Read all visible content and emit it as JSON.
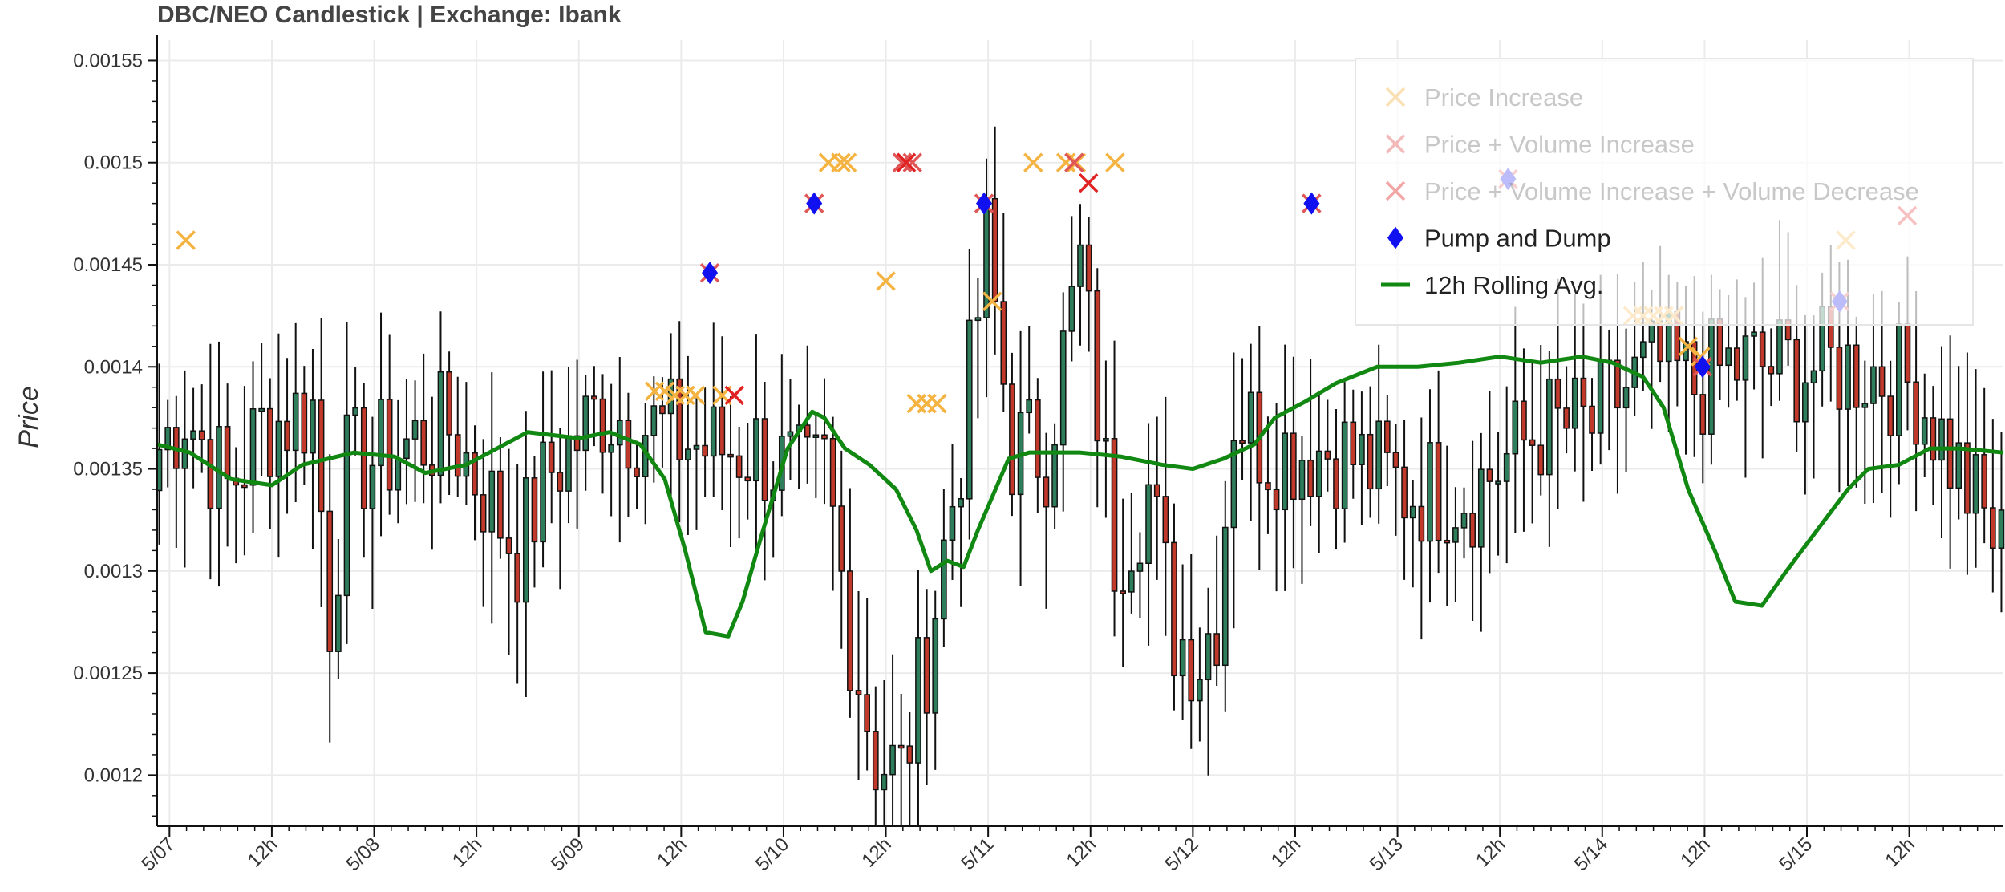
{
  "chart_data": {
    "type": "candlestick",
    "title": "DBC/NEO Candlestick | Exchange: Ibank",
    "xlabel": "",
    "ylabel": "Price",
    "ylim": [
      0.001175,
      0.00156
    ],
    "grid": true,
    "legend_position": "top-right",
    "x_ticks": [
      {
        "day": 0,
        "label": "5/07"
      },
      {
        "day": 0.5,
        "label": "12h"
      },
      {
        "day": 1,
        "label": "5/08"
      },
      {
        "day": 1.5,
        "label": "12h"
      },
      {
        "day": 2,
        "label": "5/09"
      },
      {
        "day": 2.5,
        "label": "12h"
      },
      {
        "day": 3,
        "label": "5/10"
      },
      {
        "day": 3.5,
        "label": "12h"
      },
      {
        "day": 4,
        "label": "5/11"
      },
      {
        "day": 4.5,
        "label": "12h"
      },
      {
        "day": 5,
        "label": "5/12"
      },
      {
        "day": 5.5,
        "label": "12h"
      },
      {
        "day": 6,
        "label": "5/13"
      },
      {
        "day": 6.5,
        "label": "12h"
      },
      {
        "day": 7,
        "label": "5/14"
      },
      {
        "day": 7.5,
        "label": "12h"
      },
      {
        "day": 8,
        "label": "5/15"
      },
      {
        "day": 8.5,
        "label": "12h"
      }
    ],
    "y_ticks": [
      {
        "value": 0.0012,
        "label": "0.0012"
      },
      {
        "value": 0.00125,
        "label": "0.00125"
      },
      {
        "value": 0.0013,
        "label": "0.0013"
      },
      {
        "value": 0.00135,
        "label": "0.00135"
      },
      {
        "value": 0.0014,
        "label": "0.0014"
      },
      {
        "value": 0.00145,
        "label": "0.00145"
      },
      {
        "value": 0.0015,
        "label": "0.0015"
      },
      {
        "value": 0.00155,
        "label": "0.00155"
      }
    ],
    "x_range_days": [
      -0.06,
      8.96
    ],
    "candles": {
      "interval_hours": 1,
      "start_day": -0.05,
      "up_color": "#2e7d5b",
      "down_color": "#c0392b",
      "close_anchors": [
        [
          0,
          0.00136
        ],
        [
          3,
          0.00138
        ],
        [
          8,
          0.00134
        ],
        [
          12,
          0.00137
        ],
        [
          18,
          0.00138
        ],
        [
          20,
          0.00128
        ],
        [
          22,
          0.00135
        ],
        [
          28,
          0.00136
        ],
        [
          34,
          0.00137
        ],
        [
          38,
          0.00134
        ],
        [
          42,
          0.00131
        ],
        [
          46,
          0.00135
        ],
        [
          52,
          0.00138
        ],
        [
          58,
          0.00137
        ],
        [
          64,
          0.00136
        ],
        [
          70,
          0.00136
        ],
        [
          76,
          0.00134
        ],
        [
          78,
          0.00135
        ],
        [
          81,
          0.00127
        ],
        [
          84,
          0.00121
        ],
        [
          87,
          0.0012
        ],
        [
          90,
          0.00126
        ],
        [
          94,
          0.00136
        ],
        [
          97,
          0.00146
        ],
        [
          100,
          0.00136
        ],
        [
          104,
          0.00136
        ],
        [
          108,
          0.00145
        ],
        [
          112,
          0.00131
        ],
        [
          116,
          0.00134
        ],
        [
          119,
          0.00127
        ],
        [
          122,
          0.00126
        ],
        [
          124,
          0.00128
        ],
        [
          126,
          0.00138
        ],
        [
          130,
          0.00136
        ],
        [
          138,
          0.00136
        ],
        [
          146,
          0.00134
        ],
        [
          154,
          0.00134
        ],
        [
          162,
          0.00137
        ],
        [
          168,
          0.00137
        ],
        [
          172,
          0.00139
        ],
        [
          176,
          0.0014
        ],
        [
          180,
          0.00139
        ],
        [
          184,
          0.0014
        ],
        [
          192,
          0.0014
        ],
        [
          200,
          0.0014
        ],
        [
          206,
          0.00139
        ],
        [
          212,
          0.00134
        ],
        [
          216,
          0.00131
        ],
        [
          220,
          0.00128
        ],
        [
          226,
          0.00127
        ],
        [
          232,
          0.00135
        ],
        [
          234,
          0.00136
        ],
        [
          236,
          0.00133
        ],
        [
          240,
          0.00135
        ],
        [
          244,
          0.00136
        ],
        [
          250,
          0.00134
        ],
        [
          255,
          0.00137
        ]
      ]
    },
    "rolling_avg": {
      "name": "12h Rolling Avg.",
      "color": "#118811",
      "points": [
        [
          -0.06,
          0.001362
        ],
        [
          0.1,
          0.001358
        ],
        [
          0.3,
          0.001345
        ],
        [
          0.5,
          0.001342
        ],
        [
          0.65,
          0.001352
        ],
        [
          0.9,
          0.001358
        ],
        [
          1.1,
          0.001356
        ],
        [
          1.25,
          0.001348
        ],
        [
          1.45,
          0.001352
        ],
        [
          1.6,
          0.00136
        ],
        [
          1.75,
          0.001368
        ],
        [
          2.0,
          0.001365
        ],
        [
          2.15,
          0.001368
        ],
        [
          2.3,
          0.001362
        ],
        [
          2.42,
          0.001345
        ],
        [
          2.52,
          0.00131
        ],
        [
          2.62,
          0.00127
        ],
        [
          2.73,
          0.001268
        ],
        [
          2.8,
          0.001285
        ],
        [
          2.9,
          0.00132
        ],
        [
          3.02,
          0.00136
        ],
        [
          3.14,
          0.001378
        ],
        [
          3.2,
          0.001375
        ],
        [
          3.3,
          0.00136
        ],
        [
          3.42,
          0.001352
        ],
        [
          3.55,
          0.00134
        ],
        [
          3.65,
          0.00132
        ],
        [
          3.72,
          0.0013
        ],
        [
          3.8,
          0.001305
        ],
        [
          3.88,
          0.001302
        ],
        [
          3.95,
          0.00132
        ],
        [
          4.1,
          0.001355
        ],
        [
          4.2,
          0.001358
        ],
        [
          4.45,
          0.001358
        ],
        [
          4.65,
          0.001356
        ],
        [
          4.85,
          0.001352
        ],
        [
          5.0,
          0.00135
        ],
        [
          5.15,
          0.001355
        ],
        [
          5.3,
          0.001362
        ],
        [
          5.4,
          0.001375
        ],
        [
          5.55,
          0.001383
        ],
        [
          5.7,
          0.001392
        ],
        [
          5.9,
          0.0014
        ],
        [
          6.1,
          0.0014
        ],
        [
          6.3,
          0.001402
        ],
        [
          6.5,
          0.001405
        ],
        [
          6.7,
          0.001402
        ],
        [
          6.9,
          0.001405
        ],
        [
          7.05,
          0.001402
        ],
        [
          7.2,
          0.001395
        ],
        [
          7.3,
          0.00138
        ],
        [
          7.42,
          0.00134
        ],
        [
          7.55,
          0.00131
        ],
        [
          7.65,
          0.001285
        ],
        [
          7.78,
          0.001283
        ],
        [
          7.9,
          0.0013
        ],
        [
          8.05,
          0.00132
        ],
        [
          8.2,
          0.00134
        ],
        [
          8.3,
          0.00135
        ],
        [
          8.45,
          0.001352
        ],
        [
          8.6,
          0.00136
        ],
        [
          8.75,
          0.00136
        ],
        [
          8.96,
          0.001358
        ]
      ]
    },
    "series": [
      {
        "name": "Price Increase",
        "marker": "x",
        "color": "#f5b342",
        "x_day": [
          0.08,
          2.37,
          2.42,
          2.47,
          2.52,
          2.57,
          2.7,
          3.22,
          3.28,
          3.31,
          3.5,
          3.65,
          3.7,
          3.75,
          4.02,
          4.22,
          4.38,
          4.43,
          4.62,
          7.15,
          7.2,
          7.25,
          7.3,
          7.35,
          7.42,
          7.48,
          8.19
        ],
        "y": [
          0.001462,
          0.001388,
          0.001388,
          0.001386,
          0.001386,
          0.001386,
          0.001386,
          0.0015,
          0.0015,
          0.0015,
          0.001442,
          0.001382,
          0.001382,
          0.001382,
          0.001432,
          0.0015,
          0.0015,
          0.0015,
          0.0015,
          0.001425,
          0.001425,
          0.001425,
          0.001425,
          0.001425,
          0.00141,
          0.001405,
          0.001462
        ]
      },
      {
        "name": "Price + Volume Increase",
        "marker": "x",
        "color": "#e05555",
        "x_day": [
          2.64,
          3.15,
          3.58,
          3.63,
          3.98,
          4.42,
          5.58,
          6.54,
          7.49,
          8.16
        ],
        "y": [
          0.001446,
          0.00148,
          0.0015,
          0.0015,
          0.00148,
          0.0015,
          0.00148,
          0.001492,
          0.0014,
          0.001432
        ]
      },
      {
        "name": "Price + Volume Increase + Volume Decrease",
        "marker": "x",
        "color": "#e02222",
        "x_day": [
          2.76,
          3.6,
          4.49,
          8.49
        ],
        "y": [
          0.001386,
          0.0015,
          0.00149,
          0.001474
        ]
      },
      {
        "name": "Pump and Dump",
        "marker": "diamond",
        "color": "#1010f0",
        "x_day": [
          2.64,
          3.15,
          3.98,
          5.58,
          6.54,
          7.49,
          8.16
        ],
        "y": [
          0.001446,
          0.00148,
          0.00148,
          0.00148,
          0.001492,
          0.0014,
          0.001432
        ]
      }
    ]
  },
  "legend": {
    "items": [
      {
        "label": "Price Increase",
        "color": "#f5b342",
        "glyph": "x",
        "muted": true
      },
      {
        "label": "Price + Volume Increase",
        "color": "#e05555",
        "glyph": "x",
        "muted": true
      },
      {
        "label": "Price + Volume Increase + Volume Decrease",
        "color": "#e02222",
        "glyph": "x",
        "muted": true
      },
      {
        "label": "Pump and Dump",
        "color": "#1010f0",
        "glyph": "diamond",
        "muted": false
      },
      {
        "label": "12h Rolling Avg.",
        "color": "#118811",
        "glyph": "line",
        "muted": false
      }
    ]
  }
}
